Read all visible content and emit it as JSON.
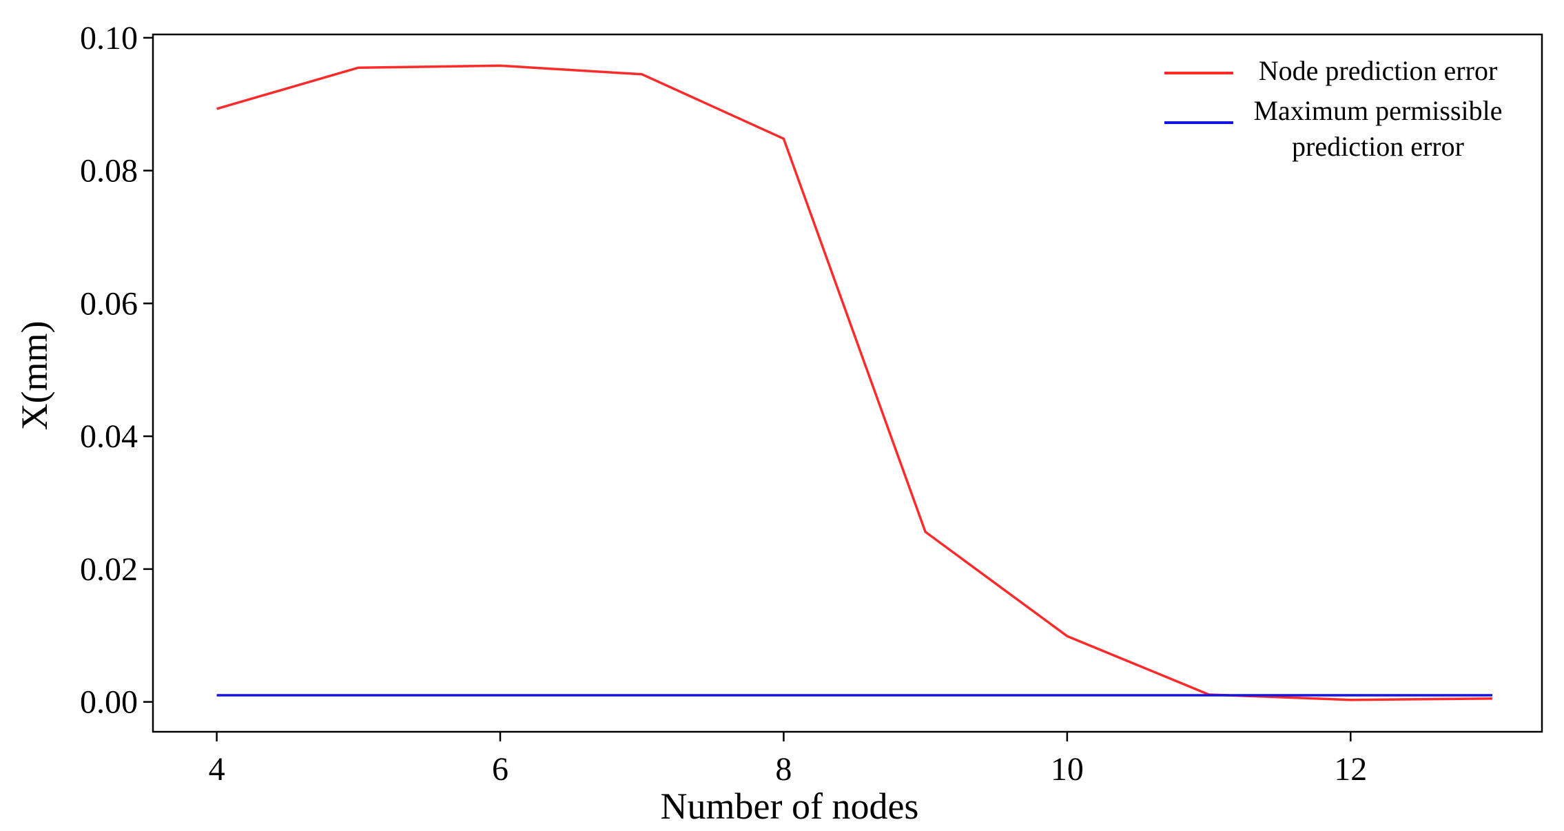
{
  "chart_data": {
    "type": "line",
    "title": "",
    "xlabel": "Number of nodes",
    "ylabel": "X(mm)",
    "xlim": [
      3.55,
      13.35
    ],
    "ylim": [
      -0.0045,
      0.1005
    ],
    "xticks": [
      4,
      6,
      8,
      10,
      12
    ],
    "xtick_labels": [
      "4",
      "6",
      "8",
      "10",
      "12"
    ],
    "yticks": [
      0.0,
      0.02,
      0.04,
      0.06,
      0.08,
      0.1
    ],
    "ytick_labels": [
      "0.00",
      "0.02",
      "0.04",
      "0.06",
      "0.08",
      "0.10"
    ],
    "grid": false,
    "legend_position": "top-right",
    "series": [
      {
        "name": "Node prediction error",
        "color": "#ff2a2a",
        "x": [
          4,
          5,
          6,
          7,
          8,
          9,
          10,
          11,
          12,
          13
        ],
        "y": [
          0.0893,
          0.0955,
          0.0958,
          0.0945,
          0.0848,
          0.0256,
          0.0099,
          0.0011,
          0.0003,
          0.0005
        ]
      },
      {
        "name": "Maximum permissible prediction error",
        "legend_lines": [
          "Maximum permissible",
          "prediction error"
        ],
        "color": "#1414e6",
        "x": [
          4,
          13
        ],
        "y": [
          0.001,
          0.001
        ]
      }
    ]
  }
}
